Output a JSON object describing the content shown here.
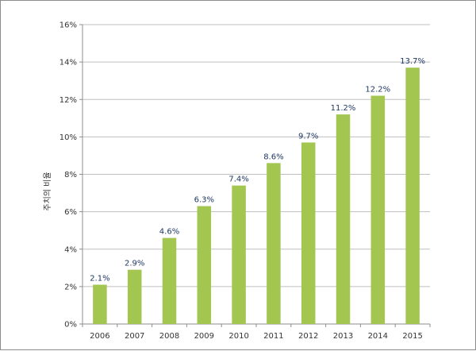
{
  "chart_data": {
    "type": "bar",
    "title": "",
    "xlabel": "",
    "ylabel": "주치의 비율",
    "categories": [
      "2006",
      "2007",
      "2008",
      "2009",
      "2010",
      "2011",
      "2012",
      "2013",
      "2014",
      "2015"
    ],
    "values": [
      2.1,
      2.9,
      4.6,
      6.3,
      7.4,
      8.6,
      9.7,
      11.2,
      12.2,
      13.7
    ],
    "value_labels": [
      "2.1%",
      "2.9%",
      "4.6%",
      "6.3%",
      "7.4%",
      "8.6%",
      "9.7%",
      "11.2%",
      "12.2%",
      "13.7%"
    ],
    "ylim": [
      0,
      16
    ],
    "yticks": [
      0,
      2,
      4,
      6,
      8,
      10,
      12,
      14,
      16
    ],
    "ytick_labels": [
      "0%",
      "2%",
      "4%",
      "6%",
      "8%",
      "10%",
      "12%",
      "14%",
      "16%"
    ],
    "grid": true,
    "legend": "none",
    "colors": {
      "bar": "#a3c651",
      "gridline": "#bfbfbf",
      "axis": "#8c8c8c",
      "data_label": "#1f3864"
    }
  }
}
